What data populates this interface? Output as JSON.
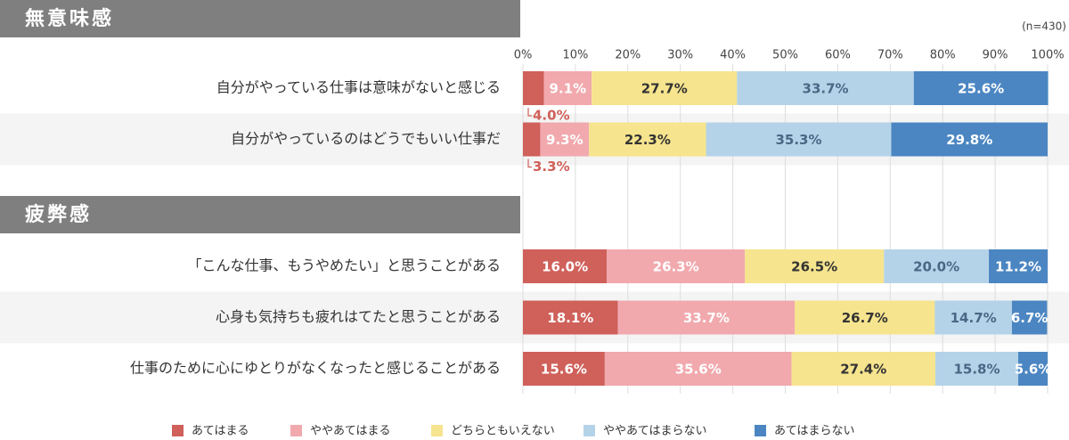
{
  "chart_data": {
    "type": "bar",
    "orientation": "horizontal",
    "stacked": true,
    "note": "(n=430)",
    "groups": [
      {
        "title": "無意味感",
        "categories": [
          "自分がやっている仕事は意味がないと感じる",
          "自分がやっているのはどうでもいい仕事だ"
        ]
      },
      {
        "title": "疲弊感",
        "categories": [
          "「こんな仕事、もうやめたい」と思うことがある",
          "心身も気持ちも疲れはてたと思うことがある",
          "仕事のために心にゆとりがなくなったと感じることがある"
        ]
      }
    ],
    "series": [
      {
        "name": "あてはまる",
        "color": "#d0605a",
        "values": [
          4.0,
          3.3,
          16.0,
          18.1,
          15.6
        ],
        "value_labels": [
          "4.0%",
          "3.3%",
          "16.0%",
          "18.1%",
          "15.6%"
        ]
      },
      {
        "name": "ややあてはまる",
        "color": "#f1a9ae",
        "values": [
          9.1,
          9.3,
          26.3,
          33.7,
          35.6
        ],
        "value_labels": [
          "9.1%",
          "9.3%",
          "26.3%",
          "33.7%",
          "35.6%"
        ]
      },
      {
        "name": "どちらともいえない",
        "color": "#f6e48e",
        "values": [
          27.7,
          22.3,
          26.5,
          26.7,
          27.4
        ],
        "value_labels": [
          "27.7%",
          "22.3%",
          "26.5%",
          "26.7%",
          "27.4%"
        ]
      },
      {
        "name": "ややあてはまらない",
        "color": "#b5d3e8",
        "values": [
          33.7,
          35.3,
          20.0,
          14.7,
          15.8
        ],
        "value_labels": [
          "33.7%",
          "35.3%",
          "20.0%",
          "14.7%",
          "15.8%"
        ]
      },
      {
        "name": "あてはまらない",
        "color": "#4b86c2",
        "values": [
          25.6,
          29.8,
          11.2,
          6.7,
          5.6
        ],
        "value_labels": [
          "25.6%",
          "29.8%",
          "11.2%",
          "6.7%",
          "5.6%"
        ]
      }
    ],
    "xlim": [
      0,
      100
    ],
    "xticks": [
      {
        "value": 0,
        "label": "0%"
      },
      {
        "value": 10,
        "label": "10%"
      },
      {
        "value": 20,
        "label": "20%"
      },
      {
        "value": 30,
        "label": "30%"
      },
      {
        "value": 40,
        "label": "40%"
      },
      {
        "value": 50,
        "label": "50%"
      },
      {
        "value": 60,
        "label": "60%"
      },
      {
        "value": 70,
        "label": "70%"
      },
      {
        "value": 80,
        "label": "80%"
      },
      {
        "value": 90,
        "label": "90%"
      },
      {
        "value": 100,
        "label": "100%"
      }
    ],
    "grid": true,
    "legend": "bottom"
  }
}
